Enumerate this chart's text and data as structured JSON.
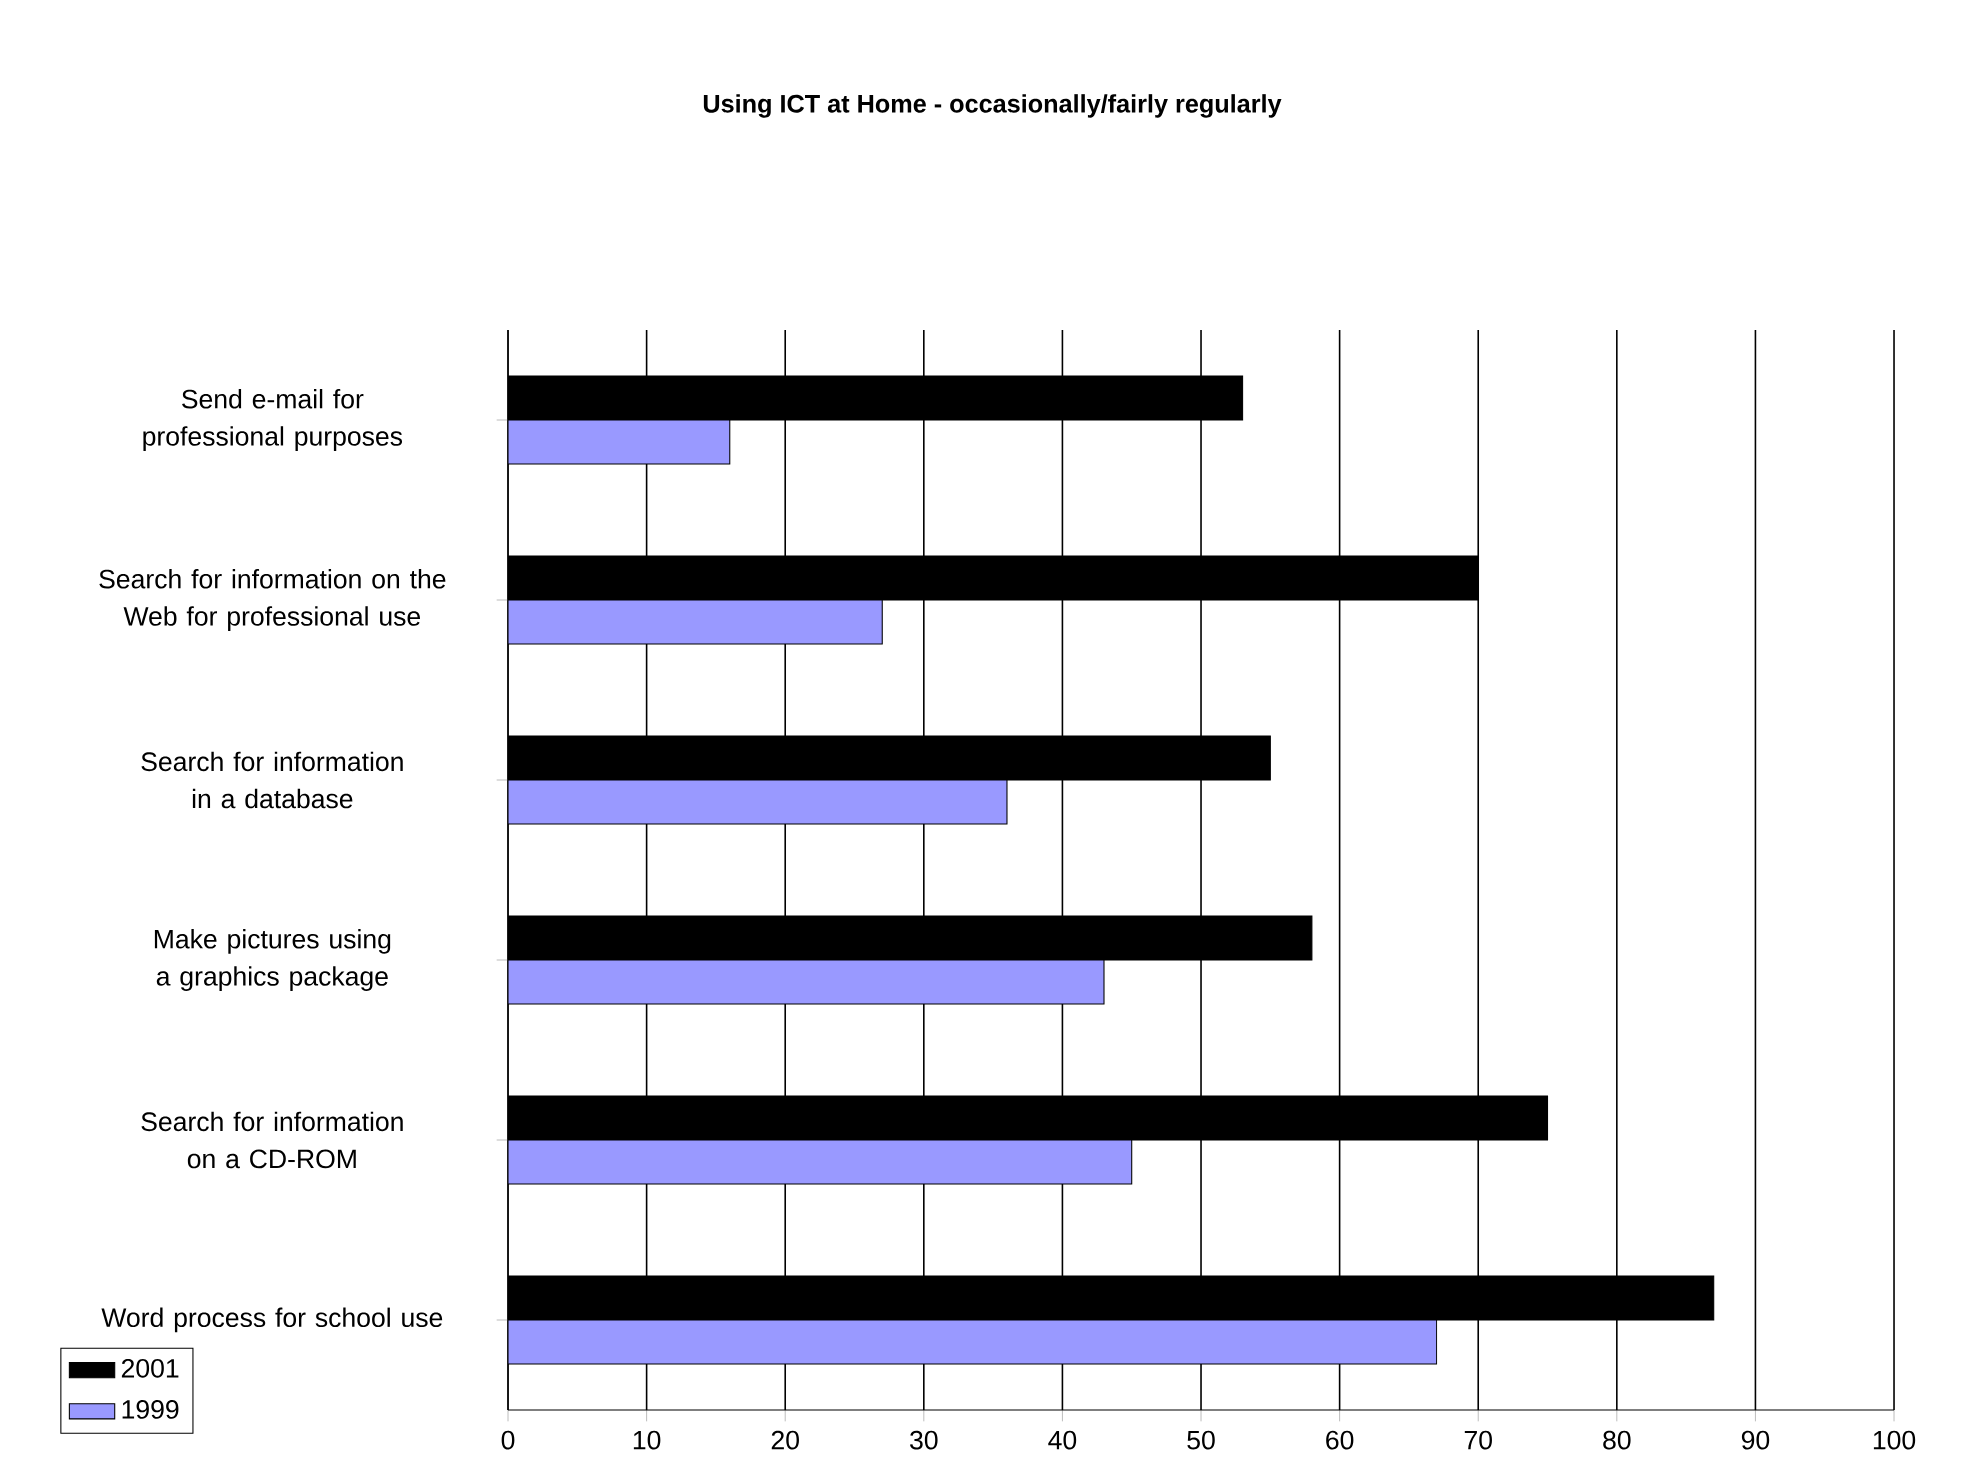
{
  "chart_data": {
    "type": "bar",
    "orientation": "horizontal",
    "title": "Using ICT at Home - occasionally/fairly regularly",
    "categories": [
      "Send e-mail for professional purposes",
      "Search for information on the Web for professional use",
      "Search for information in a database",
      "Make pictures using a graphics package",
      "Search for information on a CD-ROM",
      "Word process for school use"
    ],
    "series": [
      {
        "name": "2001",
        "color": "#000000",
        "values": [
          53,
          70,
          55,
          58,
          75,
          87
        ]
      },
      {
        "name": "1999",
        "color": "#9999ff",
        "values": [
          16,
          27,
          36,
          43,
          45,
          67
        ]
      }
    ],
    "xlim": [
      0,
      100
    ],
    "xticks": [
      0,
      10,
      20,
      30,
      40,
      50,
      60,
      70,
      80,
      90,
      100
    ],
    "grid": "x",
    "legend": "bottom left"
  }
}
